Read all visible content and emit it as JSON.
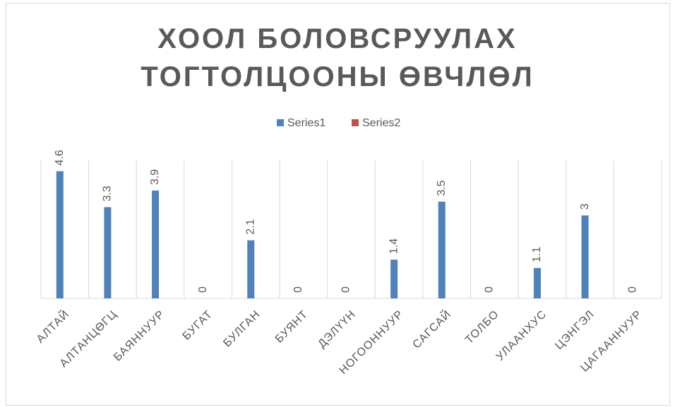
{
  "chart_data": {
    "type": "bar",
    "title": "ХООЛ БОЛОВСРУУЛАХ ТОГТОЛЦООНЫ ӨВЧЛӨЛ",
    "categories": [
      "АЛТАЙ",
      "АЛТАНЦӨГЦ",
      "БАЯННУУР",
      "БУГАТ",
      "БУЛГАН",
      "БУЯНТ",
      "ДЭЛҮҮН",
      "НОГООННУУР",
      "САГСАЙ",
      "ТОЛБО",
      "УЛААНХУС",
      "ЦЭНГЭЛ",
      "ЦАГААННУУР"
    ],
    "series": [
      {
        "name": "Series1",
        "color": "#4f81bd",
        "values": [
          4.6,
          3.3,
          3.9,
          0,
          2.1,
          0,
          0,
          1.4,
          3.5,
          0,
          1.1,
          3,
          0
        ]
      },
      {
        "name": "Series2",
        "color": "#c0504d",
        "values": [
          0,
          0,
          0,
          0,
          0,
          0,
          0,
          0,
          0,
          0,
          0,
          0,
          0
        ]
      }
    ],
    "ylim": [
      0,
      5
    ],
    "legend": "top",
    "grid": true
  }
}
